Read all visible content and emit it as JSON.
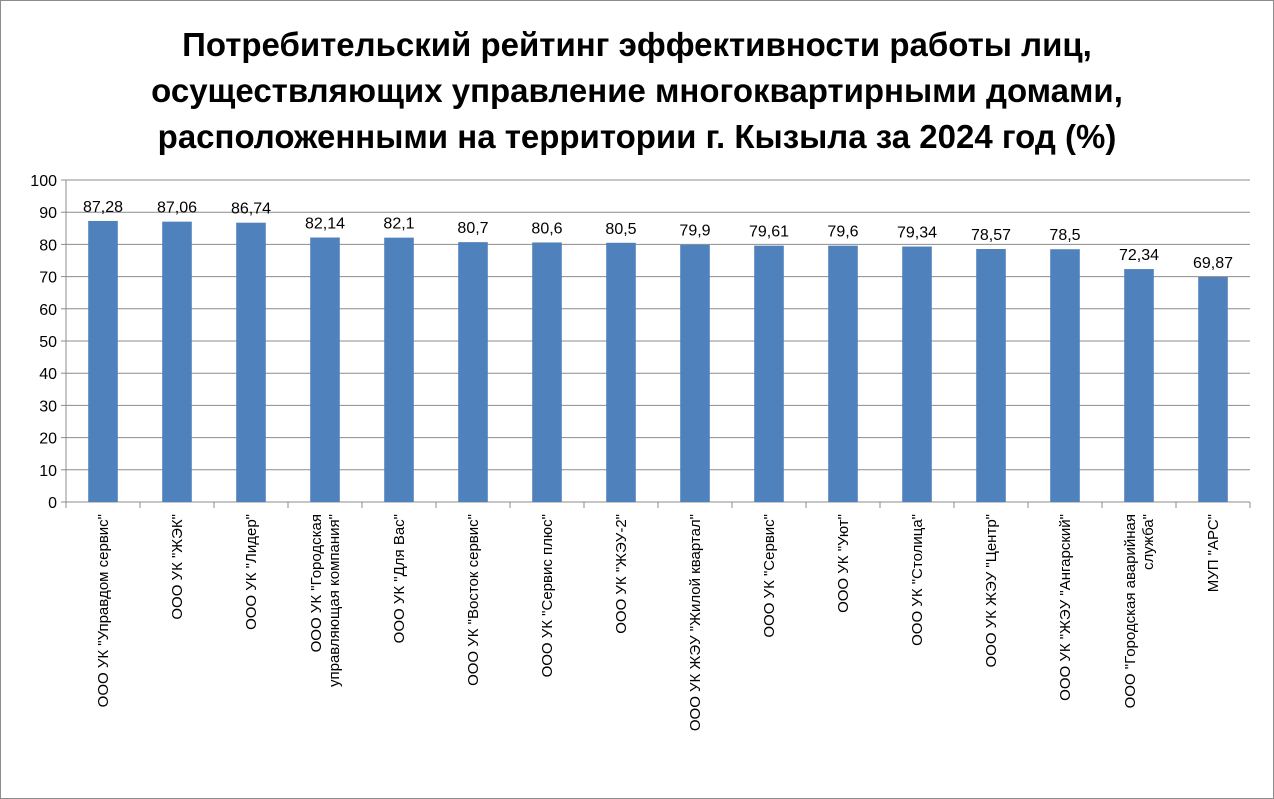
{
  "chart_data": {
    "type": "bar",
    "title_lines": [
      "Потребительский рейтинг эффективности работы лиц,",
      "осуществляющих управление многоквартирными домами,",
      "расположенными на территории г. Кызыла за 2024 год (%)"
    ],
    "xlabel": "",
    "ylabel": "",
    "ylim": [
      0,
      100
    ],
    "yticks": [
      0,
      10,
      20,
      30,
      40,
      50,
      60,
      70,
      80,
      90,
      100
    ],
    "grid": true,
    "legend": "none",
    "bar_color": "#4f81bd",
    "categories": [
      [
        "ООО УК \"Управдом сервис\""
      ],
      [
        "ООО УК \"ЖЭК\""
      ],
      [
        "ООО УК \"Лидер\""
      ],
      [
        "ООО УК \"Городская",
        "управляющая компания\""
      ],
      [
        "ООО УК \"Для Вас\""
      ],
      [
        "ООО УК \"Восток сервис\""
      ],
      [
        "ООО УК \"Сервис плюс\""
      ],
      [
        "ООО УК \"ЖЭУ-2\""
      ],
      [
        "ООО УК ЖЭУ \"Жилой квартал\""
      ],
      [
        "ООО УК \"Сервис\""
      ],
      [
        "ООО УК \"Уют\""
      ],
      [
        "ООО УК \"Столица\""
      ],
      [
        "ООО УК ЖЭУ \"Центр\""
      ],
      [
        "ООО УК \"ЖЭУ \"Ангарский\""
      ],
      [
        "ООО \"Городская аварийная",
        "служба\""
      ],
      [
        "МУП \"АРС\""
      ]
    ],
    "values": [
      87.28,
      87.06,
      86.74,
      82.14,
      82.1,
      80.7,
      80.6,
      80.5,
      79.9,
      79.61,
      79.6,
      79.34,
      78.57,
      78.5,
      72.34,
      69.87
    ],
    "data_labels": [
      "87,28",
      "87,06",
      "86,74",
      "82,14",
      "82,1",
      "80,7",
      "80,6",
      "80,5",
      "79,9",
      "79,61",
      "79,6",
      "79,34",
      "78,57",
      "78,5",
      "72,34",
      "69,87"
    ]
  }
}
